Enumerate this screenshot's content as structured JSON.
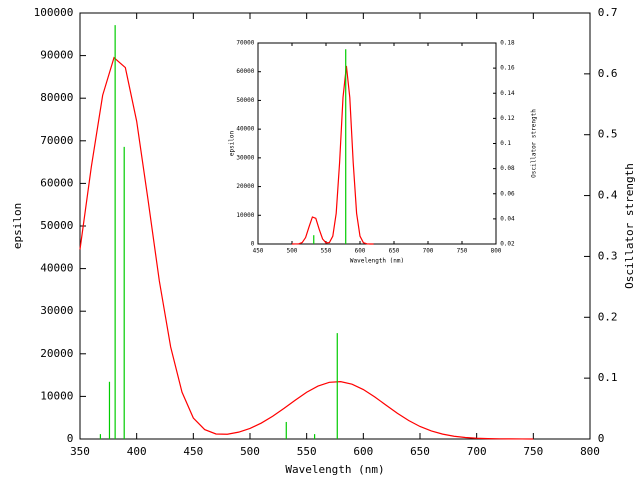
{
  "chart_data": [
    {
      "type": "line",
      "xlabel": "Wavelength (nm)",
      "ylabel": "epsilon",
      "y2label": "Oscillator strength",
      "xlim": [
        350,
        800
      ],
      "xticks": [
        350,
        400,
        450,
        500,
        550,
        600,
        650,
        700,
        750,
        800
      ],
      "ylim": [
        0,
        100000
      ],
      "yticks": [
        0,
        10000,
        20000,
        30000,
        40000,
        50000,
        60000,
        70000,
        80000,
        90000,
        100000
      ],
      "y2lim": [
        0,
        0.7
      ],
      "y2ticks": [
        0,
        0.1,
        0.2,
        0.3,
        0.4,
        0.5,
        0.6,
        0.7
      ],
      "series": [
        {
          "color": "#ff0000",
          "x": [
            350,
            360,
            370,
            380,
            390,
            400,
            410,
            420,
            430,
            440,
            450,
            460,
            470,
            480,
            490,
            500,
            510,
            520,
            530,
            540,
            550,
            560,
            570,
            580,
            590,
            600,
            610,
            620,
            630,
            640,
            650,
            660,
            670,
            680,
            690,
            700,
            710,
            720,
            730,
            740,
            750
          ],
          "values": [
            44500,
            63900,
            80700,
            89500,
            87200,
            74600,
            56200,
            37100,
            21600,
            11000,
            4930,
            2210,
            1180,
            1120,
            1610,
            2480,
            3740,
            5340,
            7180,
            9130,
            10970,
            12430,
            13310,
            13470,
            12860,
            11610,
            9890,
            7960,
            6050,
            4340,
            2940,
            1890,
            1140,
            650,
            350,
            180,
            85,
            40,
            20,
            10,
            0
          ]
        },
        {
          "color": "#00cc00",
          "axis": "y2",
          "style": "impulse",
          "x": [
            368,
            376,
            381,
            389,
            532,
            557,
            577
          ],
          "values": [
            0.008,
            0.094,
            0.68,
            0.48,
            0.028,
            0.008,
            0.174
          ]
        }
      ]
    },
    {
      "type": "line",
      "xlabel": "Wavelength (nm)",
      "ylabel": "epsilon",
      "y2label": "Oscillator strength",
      "xlim": [
        450,
        800
      ],
      "xticks": [
        450,
        500,
        550,
        600,
        650,
        700,
        750,
        800
      ],
      "ylim": [
        0,
        70000
      ],
      "yticks": [
        0,
        10000,
        20000,
        30000,
        40000,
        50000,
        60000,
        70000
      ],
      "y2lim": [
        0.02,
        0.18
      ],
      "y2ticks": [
        0.02,
        0.04,
        0.06,
        0.08,
        0.1,
        0.12,
        0.14,
        0.16,
        0.18
      ],
      "series": [
        {
          "color": "#ff0000",
          "x": [
            500,
            510,
            515,
            520,
            525,
            530,
            535,
            540,
            545,
            550,
            555,
            560,
            565,
            570,
            575,
            580,
            585,
            590,
            595,
            600,
            605,
            610,
            615,
            620
          ],
          "values": [
            0,
            70,
            510,
            2250,
            5950,
            9410,
            8940,
            5100,
            1750,
            410,
            510,
            2720,
            10690,
            28380,
            51000,
            62000,
            51000,
            28380,
            10690,
            2720,
            470,
            55,
            0,
            0
          ]
        },
        {
          "color": "#00cc00",
          "axis": "y2",
          "style": "impulse",
          "x": [
            532,
            579
          ],
          "values": [
            0.027,
            0.175
          ]
        }
      ]
    }
  ]
}
